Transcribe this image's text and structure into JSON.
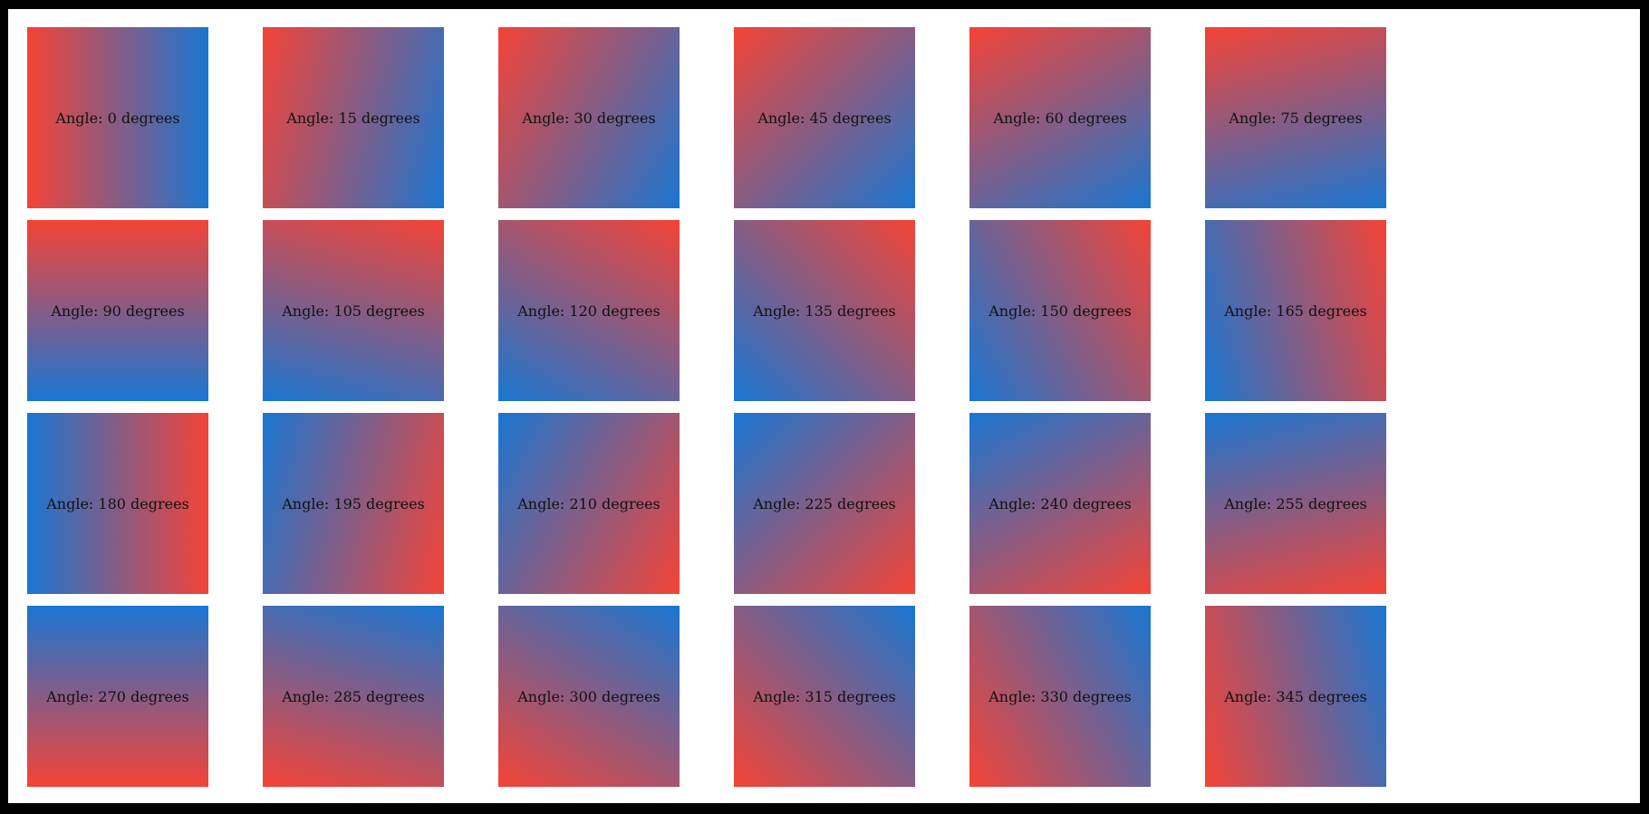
{
  "figure": {
    "background_color": "#ffffff",
    "frame_color": "#000000",
    "gradient": {
      "start_color": "#f44336",
      "end_color": "#1976d2"
    },
    "angle_step_degrees": 15,
    "grid": {
      "columns": 6,
      "rows": 4
    }
  },
  "tiles": [
    {
      "angle": 0,
      "label": "Angle: 0 degrees"
    },
    {
      "angle": 15,
      "label": "Angle: 15 degrees"
    },
    {
      "angle": 30,
      "label": "Angle: 30 degrees"
    },
    {
      "angle": 45,
      "label": "Angle: 45 degrees"
    },
    {
      "angle": 60,
      "label": "Angle: 60 degrees"
    },
    {
      "angle": 75,
      "label": "Angle: 75 degrees"
    },
    {
      "angle": 90,
      "label": "Angle: 90 degrees"
    },
    {
      "angle": 105,
      "label": "Angle: 105 degrees"
    },
    {
      "angle": 120,
      "label": "Angle: 120 degrees"
    },
    {
      "angle": 135,
      "label": "Angle: 135 degrees"
    },
    {
      "angle": 150,
      "label": "Angle: 150 degrees"
    },
    {
      "angle": 165,
      "label": "Angle: 165 degrees"
    },
    {
      "angle": 180,
      "label": "Angle: 180 degrees"
    },
    {
      "angle": 195,
      "label": "Angle: 195 degrees"
    },
    {
      "angle": 210,
      "label": "Angle: 210 degrees"
    },
    {
      "angle": 225,
      "label": "Angle: 225 degrees"
    },
    {
      "angle": 240,
      "label": "Angle: 240 degrees"
    },
    {
      "angle": 255,
      "label": "Angle: 255 degrees"
    },
    {
      "angle": 270,
      "label": "Angle: 270 degrees"
    },
    {
      "angle": 285,
      "label": "Angle: 285 degrees"
    },
    {
      "angle": 300,
      "label": "Angle: 300 degrees"
    },
    {
      "angle": 315,
      "label": "Angle: 315 degrees"
    },
    {
      "angle": 330,
      "label": "Angle: 330 degrees"
    },
    {
      "angle": 345,
      "label": "Angle: 345 degrees"
    }
  ]
}
